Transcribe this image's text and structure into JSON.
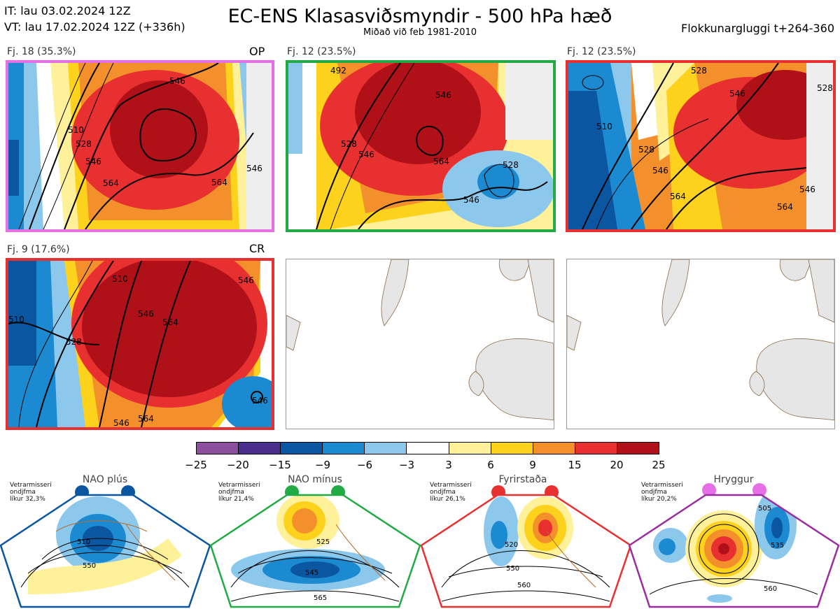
{
  "header": {
    "it_line": "IT: lau 03.02.2024 12Z",
    "vt_line": "VT: lau 17.02.2024 12Z  (+336h)",
    "title": "EC-ENS Klasasviðsmyndir - 500 hPa hæð",
    "subtitle": "Miðað við feb 1981-2010",
    "window": "Flokkunargluggi t+264-360"
  },
  "panels": [
    {
      "label": "Fj. 18 (35.3%)",
      "tag": "OP",
      "border": "#e66ee6",
      "contours": [
        "546",
        "528",
        "510",
        "546",
        "564",
        "564",
        "546",
        "528"
      ]
    },
    {
      "label": "Fj. 12 (23.5%)",
      "tag": "",
      "border": "#22aa44",
      "contours": [
        "546",
        "528",
        "564",
        "528",
        "546",
        "546",
        "492"
      ]
    },
    {
      "label": "Fj. 12 (23.5%)",
      "tag": "",
      "border": "#e83030",
      "contours": [
        "528",
        "546",
        "510",
        "528",
        "546",
        "564",
        "564",
        "546",
        "528"
      ]
    },
    {
      "label": "Fj. 9 (17.6%)",
      "tag": "CR",
      "border": "#e83030",
      "contours": [
        "546",
        "510",
        "528",
        "546",
        "564",
        "546",
        "546",
        "564",
        "546"
      ]
    },
    {
      "label": "",
      "tag": "",
      "border": "#999999",
      "contours": []
    },
    {
      "label": "",
      "tag": "",
      "border": "#999999",
      "contours": []
    }
  ],
  "colorbar": {
    "colors": [
      "#8e4ea0",
      "#4a2e8e",
      "#0b56a0",
      "#1c8ad0",
      "#8cc8ec",
      "#ffffff",
      "#fff09a",
      "#fcd21c",
      "#f4902c",
      "#e83030",
      "#b01018"
    ],
    "ticks": [
      "−25",
      "−20",
      "−15",
      "−9",
      "−6",
      "−3",
      "3",
      "6",
      "9",
      "15",
      "20",
      "25"
    ]
  },
  "regimes": [
    {
      "title": "NAO plús",
      "note": [
        "Vetrarmisseri",
        "ondjfma",
        "líkur 32,3%"
      ],
      "color": "#0b56a0",
      "labels": [
        "510",
        "550"
      ]
    },
    {
      "title": "NAO mínus",
      "note": [
        "Vetrarmisseri",
        "ondjfma",
        "líkur 21,4%"
      ],
      "color": "#22aa44",
      "labels": [
        "525",
        "545",
        "565"
      ]
    },
    {
      "title": "Fyrirstaða",
      "note": [
        "Vetrarmisseri",
        "ondjfma",
        "líkur 26,1%"
      ],
      "color": "#e83030",
      "labels": [
        "520",
        "550",
        "560"
      ]
    },
    {
      "title": "Hryggur",
      "note": [
        "Vetrarmisseri",
        "ondjfma",
        "líkur 20,2%"
      ],
      "color": "#e66ee6",
      "labels": [
        "505",
        "535",
        "560"
      ]
    }
  ]
}
